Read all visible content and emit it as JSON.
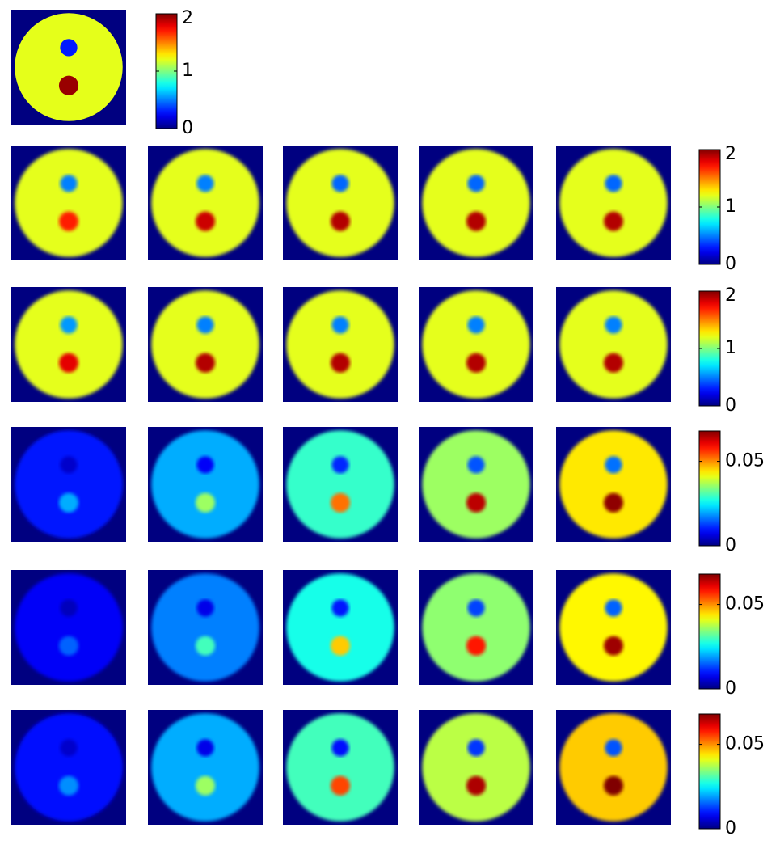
{
  "figure": {
    "rows": [
      {
        "colorbar": {
          "lim": [
            0,
            2
          ],
          "ticks": [
            0,
            1,
            2
          ]
        },
        "panels": [
          {
            "disc": 1.2,
            "cold": 0.3,
            "hot": 1.95
          }
        ]
      },
      {
        "colorbar": {
          "lim": [
            0,
            2
          ],
          "ticks": [
            0,
            1,
            2
          ]
        },
        "panels": [
          {
            "disc": 1.2,
            "cold": 0.5,
            "hot": 1.7
          },
          {
            "disc": 1.2,
            "cold": 0.5,
            "hot": 1.85
          },
          {
            "disc": 1.2,
            "cold": 0.45,
            "hot": 1.9
          },
          {
            "disc": 1.2,
            "cold": 0.45,
            "hot": 1.9
          },
          {
            "disc": 1.2,
            "cold": 0.45,
            "hot": 1.9
          }
        ]
      },
      {
        "colorbar": {
          "lim": [
            0,
            2
          ],
          "ticks": [
            0,
            1,
            2
          ]
        },
        "panels": [
          {
            "disc": 1.2,
            "cold": 0.55,
            "hot": 1.8
          },
          {
            "disc": 1.2,
            "cold": 0.5,
            "hot": 1.9
          },
          {
            "disc": 1.2,
            "cold": 0.5,
            "hot": 1.9
          },
          {
            "disc": 1.2,
            "cold": 0.5,
            "hot": 1.9
          },
          {
            "disc": 1.2,
            "cold": 0.5,
            "hot": 1.9
          }
        ]
      },
      {
        "colorbar": {
          "lim": [
            0,
            0.068
          ],
          "ticks": [
            0,
            0.05
          ]
        },
        "panels": [
          {
            "disc": 0.01,
            "cold": 0.005,
            "hot": 0.02
          },
          {
            "disc": 0.02,
            "cold": 0.008,
            "hot": 0.036
          },
          {
            "disc": 0.029,
            "cold": 0.011,
            "hot": 0.052
          },
          {
            "disc": 0.036,
            "cold": 0.014,
            "hot": 0.064
          },
          {
            "disc": 0.044,
            "cold": 0.016,
            "hot": 0.067
          }
        ]
      },
      {
        "colorbar": {
          "lim": [
            0,
            0.068
          ],
          "ticks": [
            0,
            0.05
          ]
        },
        "panels": [
          {
            "disc": 0.008,
            "cold": 0.004,
            "hot": 0.015
          },
          {
            "disc": 0.017,
            "cold": 0.007,
            "hot": 0.03
          },
          {
            "disc": 0.027,
            "cold": 0.01,
            "hot": 0.046
          },
          {
            "disc": 0.035,
            "cold": 0.013,
            "hot": 0.058
          },
          {
            "disc": 0.043,
            "cold": 0.015,
            "hot": 0.066
          }
        ]
      },
      {
        "colorbar": {
          "lim": [
            0,
            0.068
          ],
          "ticks": [
            0,
            0.05
          ]
        },
        "panels": [
          {
            "disc": 0.009,
            "cold": 0.005,
            "hot": 0.018
          },
          {
            "disc": 0.02,
            "cold": 0.007,
            "hot": 0.036
          },
          {
            "disc": 0.03,
            "cold": 0.009,
            "hot": 0.055
          },
          {
            "disc": 0.038,
            "cold": 0.012,
            "hot": 0.065
          },
          {
            "disc": 0.046,
            "cold": 0.014,
            "hot": 0.068
          }
        ]
      }
    ]
  }
}
